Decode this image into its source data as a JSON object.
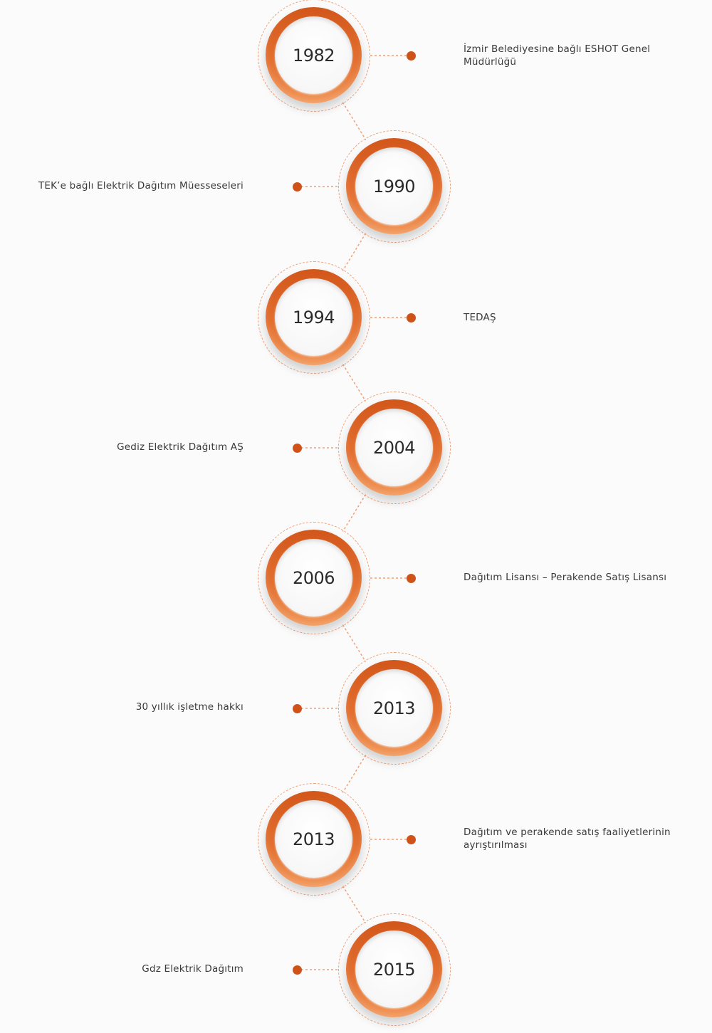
{
  "timeline": [
    {
      "year": "1982",
      "text": "İzmir Belediyesine bağlı ESHOT Genel Müdürlüğü"
    },
    {
      "year": "1990",
      "text": "TEK’e bağlı Elektrik Dağıtım Müesseseleri"
    },
    {
      "year": "1994",
      "text": "TEDAŞ"
    },
    {
      "year": "2004",
      "text": "Gediz Elektrik Dağıtım AŞ"
    },
    {
      "year": "2006",
      "text": "Dağıtım Lisansı – Perakende Satış Lisansı"
    },
    {
      "year": "2013",
      "text": "30 yıllık işletme hakkı"
    },
    {
      "year": "2013",
      "text": "Dağıtım ve perakende satış faaliyetlerinin ayrıştırılması"
    },
    {
      "year": "2015",
      "text": "Gdz Elektrik Dağıtım"
    }
  ],
  "colors": {
    "accent": "#cf5219",
    "accent_light": "#f19658",
    "dashed_line": "#f0a077",
    "text": "#3a3a3a",
    "background": "#fbfbfb"
  }
}
